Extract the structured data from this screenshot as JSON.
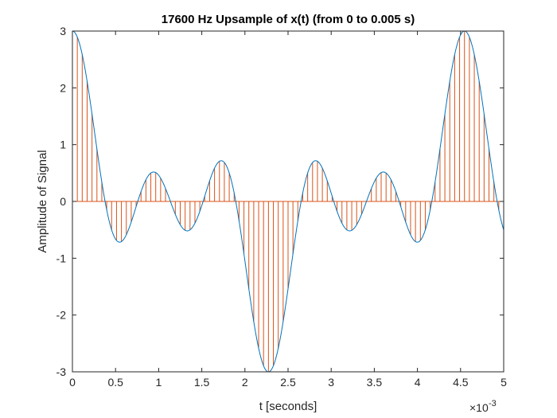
{
  "chart_data": {
    "type": "line",
    "title": "17600 Hz Upsample of x(t) (from 0 to 0.005 s)",
    "xlabel": "t [seconds]",
    "ylabel": "Amplitude of Signal",
    "x_exponent_label": "×10",
    "x_exponent_power": "-3",
    "xlim": [
      0,
      0.005
    ],
    "ylim": [
      -3,
      3
    ],
    "x_ticks": [
      0,
      0.0005,
      0.001,
      0.0015,
      0.002,
      0.0025,
      0.003,
      0.0035,
      0.004,
      0.0045,
      0.005
    ],
    "x_tick_labels": [
      "0",
      "0.5",
      "1",
      "1.5",
      "2",
      "2.5",
      "3",
      "3.5",
      "4",
      "4.5",
      "5"
    ],
    "y_ticks": [
      3,
      2,
      1,
      0,
      -1,
      -2,
      -3
    ],
    "y_tick_labels": [
      "3",
      "2",
      "1",
      "0",
      "-1",
      "-2",
      "-3"
    ],
    "grid": false,
    "series": [
      {
        "kind": "line",
        "color": "#0072BD",
        "signal": {
          "components": [
            {
              "amplitude": 1,
              "frequency_hz": 220
            },
            {
              "amplitude": 1,
              "frequency_hz": 660
            },
            {
              "amplitude": 1,
              "frequency_hz": 1100
            }
          ]
        },
        "x_range": [
          0,
          0.005
        ]
      },
      {
        "kind": "stem",
        "color": "#D95319",
        "sample_rate_hz": 17600,
        "x_range": [
          0,
          0.005
        ]
      }
    ]
  }
}
